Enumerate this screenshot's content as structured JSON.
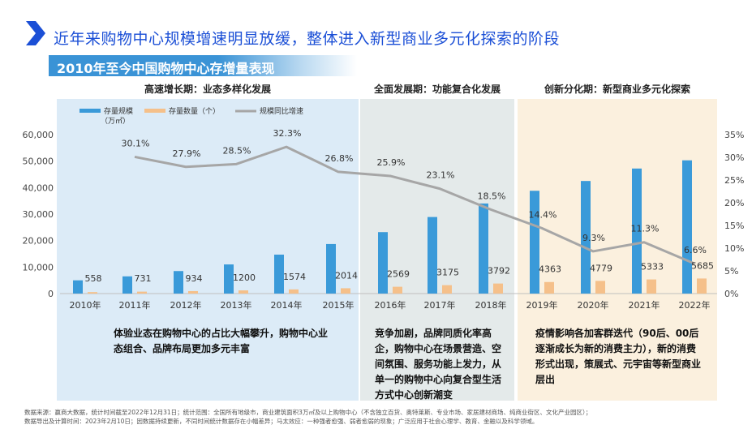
{
  "header": {
    "title": "近年来购物中心规模增速明显放缓，整体进入新型商业多元化探索的阶段",
    "subtitle": "2010年至今中国购物中心存增量表现"
  },
  "phases": [
    {
      "label": "高速增长期：业态多样化发展",
      "desc": "体验业态在购物中心的占比大幅攀升，购物中心业态组合、品牌布局更加多元丰富",
      "bg": "#dcebf7"
    },
    {
      "label": "全面发展期：功能复合化发展",
      "desc": "竞争加剧，品牌同质化率高企，购物中心在场景营造、空间氛围、服务功能上发力，从单一的购物中心向复合型生活方式中心创新潮变",
      "bg": "#e4eaea"
    },
    {
      "label": "创新分化期：新型商业多元化探索",
      "desc": "疫情影响各加客群迭代（90后、00后逐渐成长为新的消费主力），新的消费形式出现，策展式、元宇宙等新型商业层出",
      "bg": "#fbf0de"
    }
  ],
  "footnotes": [
    "数据来源：赢商大数据，统计时间截至2022年12月31日；统计范围：全国所有地级市，商业建筑面积3万㎡及以上购物中心（不含独立百货、奥特莱斯、专业市场、家居建材商场、纯商业街区、文化产业园区）；",
    "数据导出及计算时间：2023年2月10日；因数据持续更新，不同时间统计数据存在小幅差异；马太效应：一种强者愈强、弱者愈弱的现象；广泛应用于社会心理学、教育、金融以及科学领域。"
  ],
  "colors": {
    "bar": "#3a9ad9",
    "count_bar": "#f5c08a",
    "line": "#a6a6a6",
    "title": "#1b4fd6",
    "accent": "#3a93d6"
  },
  "chart_data": {
    "type": "bar",
    "categories": [
      "2010年",
      "2011年",
      "2012年",
      "2013年",
      "2014年",
      "2015年",
      "2016年",
      "2017年",
      "2018年",
      "2019年",
      "2020年",
      "2021年",
      "2022年"
    ],
    "series": [
      {
        "name": "存量规模（万㎡）",
        "type": "bar",
        "axis": "left",
        "values": [
          5000,
          6500,
          8500,
          11000,
          14700,
          18700,
          23200,
          28900,
          34000,
          38800,
          42500,
          47200,
          50300
        ]
      },
      {
        "name": "存量数量（个）",
        "type": "bar",
        "axis": "left",
        "values": [
          558,
          731,
          934,
          1200,
          1574,
          2014,
          2569,
          3175,
          3792,
          4363,
          4779,
          5333,
          5685
        ],
        "data_labels": [
          "558",
          "731",
          "934",
          "1200",
          "1574",
          "2014",
          "2569",
          "3175",
          "3792",
          "4363",
          "4779",
          "5333",
          "5685"
        ]
      },
      {
        "name": "规模同比增速",
        "type": "line",
        "axis": "right",
        "values": [
          null,
          30.1,
          27.9,
          28.5,
          32.3,
          26.8,
          25.9,
          23.1,
          18.5,
          14.4,
          9.3,
          11.3,
          6.6
        ],
        "data_labels": [
          "",
          "30.1%",
          "27.9%",
          "28.5%",
          "32.3%",
          "26.8%",
          "25.9%",
          "23.1%",
          "18.5%",
          "14.4%",
          "9.3%",
          "11.3%",
          "6.6%"
        ]
      }
    ],
    "y_left": {
      "min": 0,
      "max": 60000,
      "ticks": [
        "0",
        "10,000",
        "20,000",
        "30,000",
        "40,000",
        "50,000",
        "60,000"
      ]
    },
    "y_right": {
      "min": 0,
      "max": 35,
      "ticks": [
        "0%",
        "5%",
        "10%",
        "15%",
        "20%",
        "25%",
        "30%",
        "35%"
      ]
    },
    "legend": {
      "position": "top-left",
      "labels": [
        "存量规模",
        "（万㎡）",
        "存量数量（个）",
        "规模同比增速"
      ]
    },
    "grid": false
  }
}
